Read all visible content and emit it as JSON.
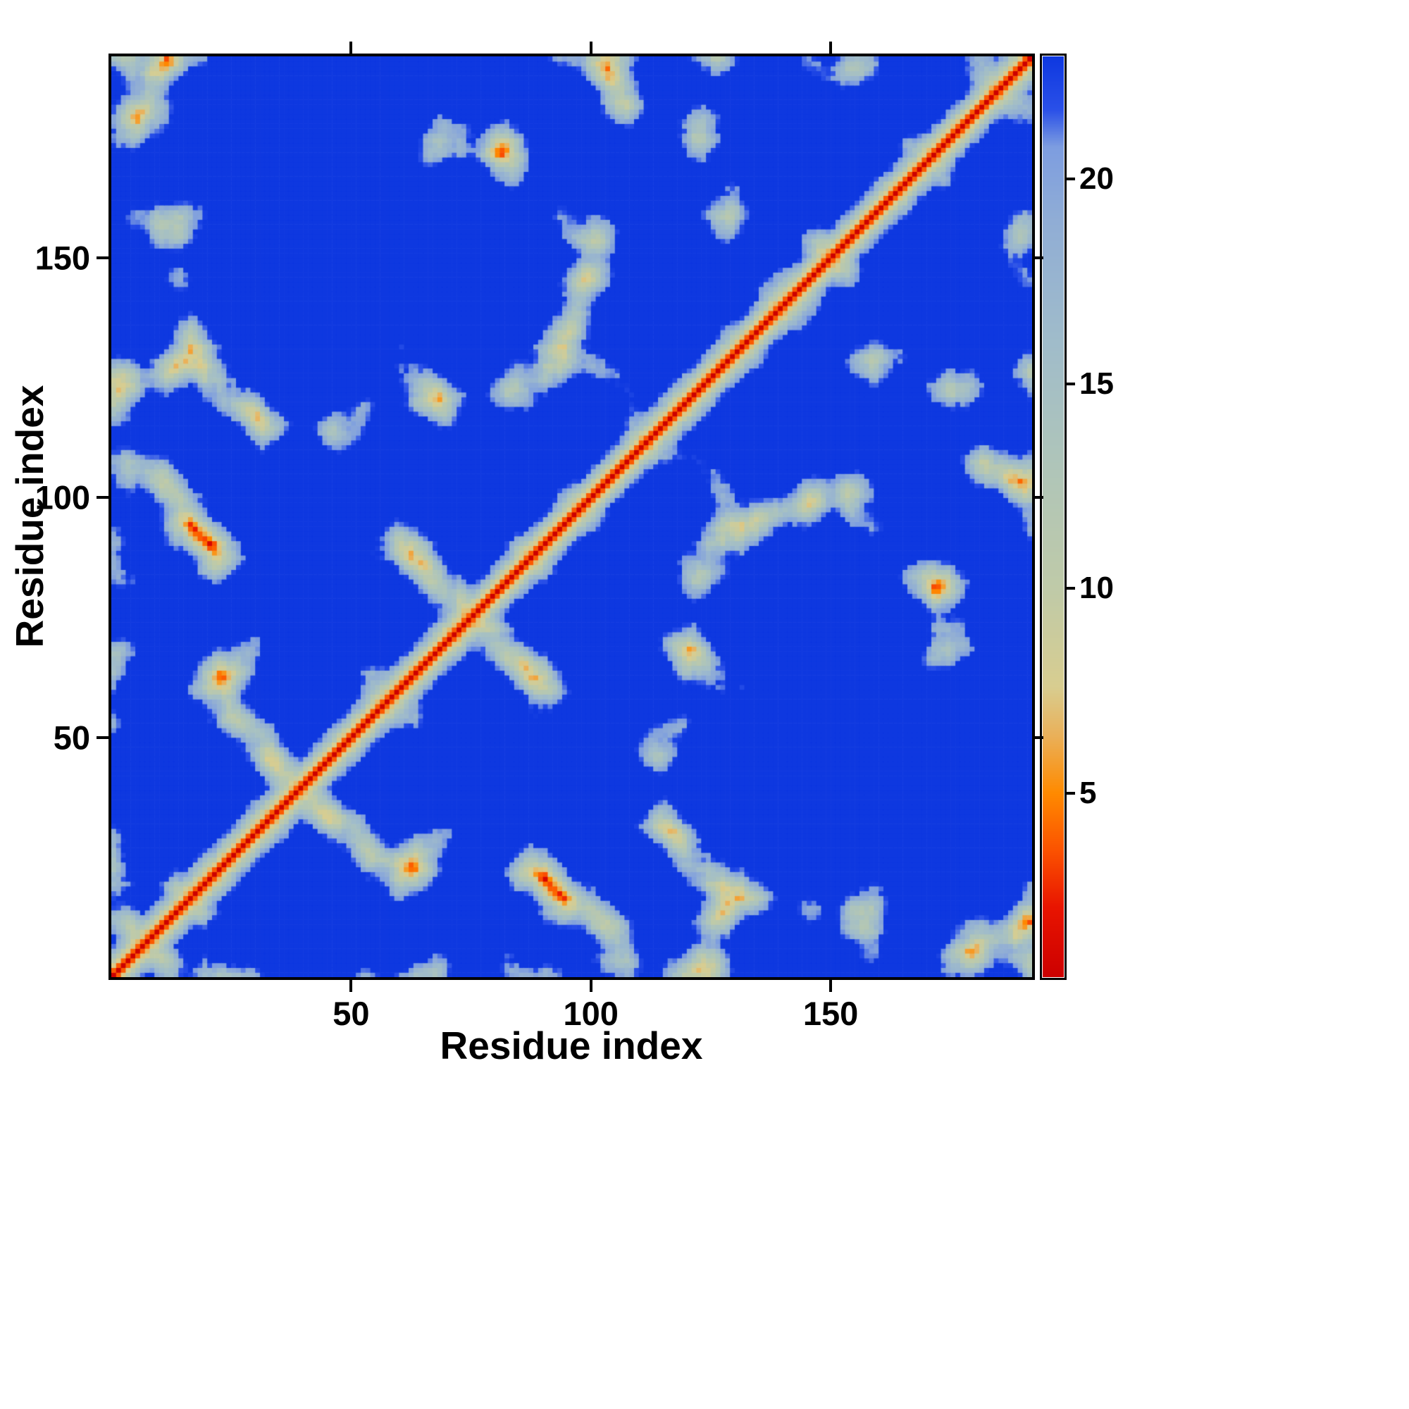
{
  "chart_data": {
    "type": "heatmap",
    "title": "",
    "xlabel": "Residue index",
    "ylabel": "Residue index",
    "x_ticks": [
      50,
      100,
      150
    ],
    "y_ticks": [
      50,
      100,
      150
    ],
    "x_range": [
      0,
      192
    ],
    "y_range": [
      0,
      192
    ],
    "n_residues": 192,
    "value_range": [
      0,
      23
    ],
    "colorbar_range": [
      0.5,
      23
    ],
    "colorbar_ticks": [
      5,
      10,
      15,
      20
    ],
    "colorbar_position": "right",
    "grid": false,
    "diagonal_value": 0,
    "colormap_stops": [
      [
        0.5,
        "#cc0000"
      ],
      [
        2.2,
        "#e81400"
      ],
      [
        3.6,
        "#fb5200"
      ],
      [
        5.0,
        "#ff8a00"
      ],
      [
        6.4,
        "#eab059"
      ],
      [
        7.6,
        "#d8cd90"
      ],
      [
        10.0,
        "#bfcaa8"
      ],
      [
        13.0,
        "#afc5b9"
      ],
      [
        16.0,
        "#a0bcca"
      ],
      [
        19.0,
        "#90add5"
      ],
      [
        20.8,
        "#7d9de0"
      ],
      [
        21.7,
        "#2a50e8"
      ],
      [
        23.0,
        "#0e38e0"
      ]
    ],
    "background_color_value": "#0e38e0",
    "generator": {
      "seed": 42,
      "step": 3.8,
      "turn": 0.6,
      "confine_radius": 24,
      "center_amp": 9,
      "center_fx": 0.033,
      "center_fy": 0.019,
      "noise": 2.2
    },
    "description": "Symmetric 192x192 residue-residue distance matrix of a protein. Red diagonal = near-zero distances, orange = close contacts (~5 A), pale green/gray = mid-range (~8-18 A), saturated blue background = distances at or above ~22 A (clamped). Off-diagonal pale blobs and scattered orange cells mark tertiary contacts between sequence-distant residues."
  }
}
